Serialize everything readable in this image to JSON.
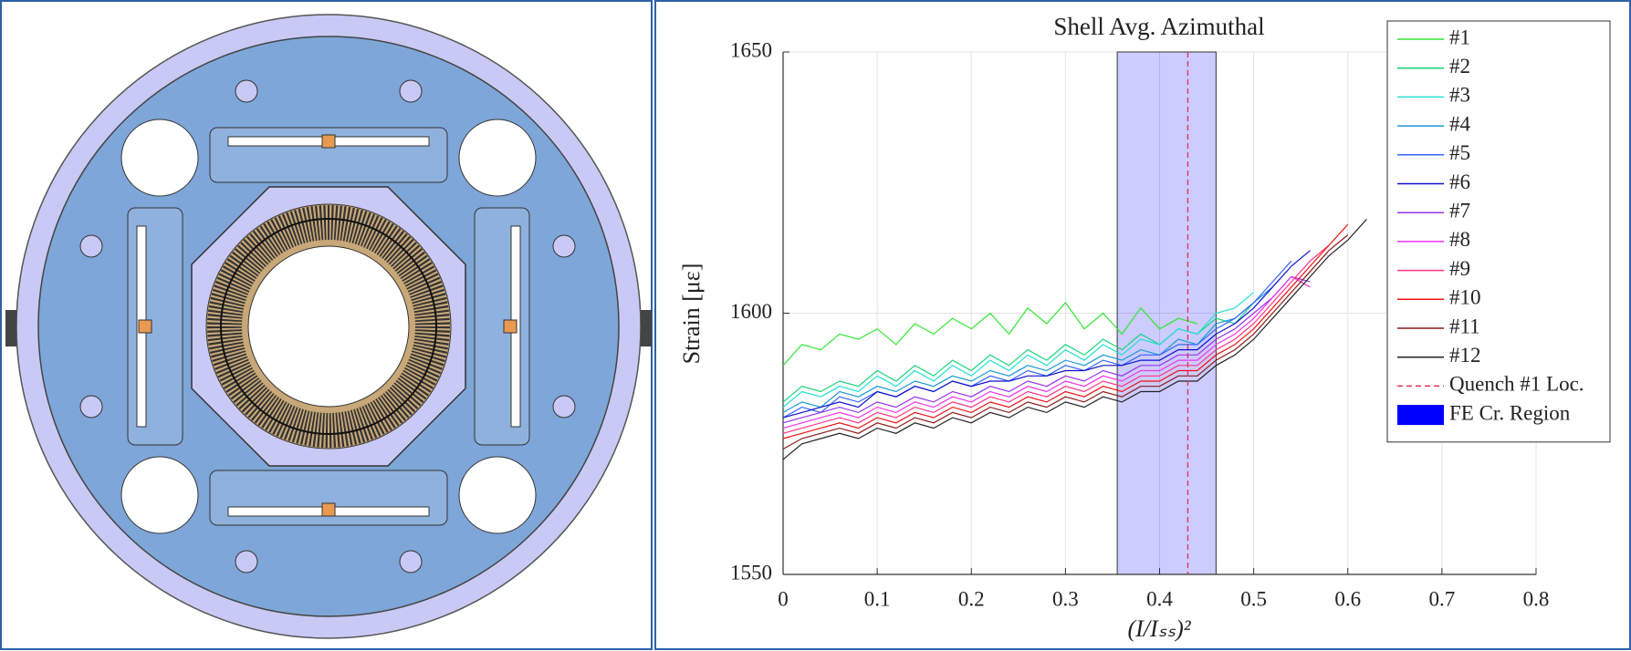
{
  "chart_data": {
    "type": "line",
    "title": "Shell Avg. Azimuthal",
    "x_label": "(I/Iₛₛ)²",
    "y_label": "Strain [με]",
    "x": [
      0,
      0.02,
      0.04,
      0.06,
      0.08,
      0.1,
      0.12,
      0.14,
      0.16,
      0.18,
      0.2,
      0.22,
      0.24,
      0.26,
      0.28,
      0.3,
      0.32,
      0.34,
      0.36,
      0.38,
      0.4,
      0.42,
      0.44,
      0.46,
      0.48,
      0.5,
      0.52,
      0.54,
      0.56,
      0.58,
      0.6,
      0.62
    ],
    "xlim": [
      0,
      0.8
    ],
    "xticks": [
      0,
      0.1,
      0.2,
      0.3,
      0.4,
      0.5,
      0.6,
      0.7,
      0.8
    ],
    "ylim": [
      1550,
      1650
    ],
    "yticks": [
      1550,
      1600,
      1650
    ],
    "grid": true,
    "legend": "top-right",
    "series": [
      {
        "name": "#1",
        "color": "#33e633",
        "values": [
          1590,
          1594,
          1593,
          1596,
          1595,
          1597,
          1594,
          1598,
          1596,
          1599,
          1597,
          1600,
          1596,
          1601,
          1598,
          1602,
          1597,
          1600,
          1596,
          1601,
          1597,
          1599,
          1598,
          null,
          null,
          null,
          null,
          null,
          null,
          null,
          null,
          null
        ]
      },
      {
        "name": "#2",
        "color": "#19d47a",
        "values": [
          1583,
          1586,
          1585,
          1587,
          1586,
          1589,
          1587,
          1590,
          1588,
          1591,
          1589,
          1592,
          1590,
          1593,
          1591,
          1594,
          1592,
          1595,
          1593,
          1596,
          1594,
          1597,
          1596,
          1599,
          1598,
          1602,
          null,
          null,
          null,
          null,
          null,
          null
        ]
      },
      {
        "name": "#3",
        "color": "#22e0d0",
        "values": [
          1582,
          1585,
          1584,
          1586,
          1585,
          1588,
          1586,
          1589,
          1587,
          1590,
          1588,
          1591,
          1589,
          1592,
          1590,
          1593,
          1591,
          1594,
          1592,
          1595,
          1594,
          1597,
          1596,
          1600,
          1601,
          1604,
          null,
          null,
          null,
          null,
          null,
          null
        ]
      },
      {
        "name": "#4",
        "color": "#1a9ad6",
        "values": [
          1581,
          1583,
          1582,
          1585,
          1584,
          1586,
          1585,
          1587,
          1586,
          1588,
          1587,
          1589,
          1588,
          1590,
          1589,
          1591,
          1590,
          1592,
          1591,
          1593,
          1592,
          1595,
          1594,
          1598,
          1599,
          1602,
          1605,
          null,
          null,
          null,
          null,
          null
        ]
      },
      {
        "name": "#5",
        "color": "#3366ff",
        "values": [
          1580,
          1582,
          1581,
          1584,
          1583,
          1585,
          1584,
          1586,
          1585,
          1587,
          1586,
          1588,
          1587,
          1589,
          1588,
          1590,
          1589,
          1591,
          1590,
          1592,
          1592,
          1594,
          1594,
          1597,
          1599,
          1602,
          1606,
          1610,
          null,
          null,
          null,
          null
        ]
      },
      {
        "name": "#6",
        "color": "#1010cc",
        "values": [
          1580,
          1581,
          1582,
          1583,
          1582,
          1585,
          1584,
          1586,
          1585,
          1587,
          1586,
          1587,
          1587,
          1588,
          1588,
          1589,
          1589,
          1590,
          1590,
          1591,
          1591,
          1593,
          1593,
          1596,
          1598,
          1601,
          1605,
          1609,
          1612,
          null,
          null,
          null
        ]
      },
      {
        "name": "#7",
        "color": "#9933ee",
        "values": [
          1579,
          1580,
          1581,
          1582,
          1581,
          1583,
          1582,
          1584,
          1583,
          1585,
          1584,
          1586,
          1585,
          1587,
          1586,
          1588,
          1587,
          1589,
          1588,
          1590,
          1590,
          1592,
          1592,
          1595,
          1597,
          1600,
          1603,
          1607,
          1606,
          null,
          null,
          null
        ]
      },
      {
        "name": "#8",
        "color": "#ee33ee",
        "values": [
          1578,
          1579,
          1580,
          1581,
          1580,
          1582,
          1581,
          1583,
          1582,
          1584,
          1583,
          1585,
          1584,
          1586,
          1585,
          1587,
          1586,
          1588,
          1587,
          1589,
          1589,
          1591,
          1591,
          1594,
          1596,
          1599,
          1603,
          1607,
          1605,
          null,
          null,
          null
        ]
      },
      {
        "name": "#9",
        "color": "#ff3388",
        "values": [
          1577,
          1578,
          1579,
          1580,
          1579,
          1581,
          1580,
          1582,
          1581,
          1583,
          1582,
          1584,
          1583,
          1585,
          1584,
          1586,
          1585,
          1587,
          1586,
          1588,
          1588,
          1590,
          1590,
          1593,
          1595,
          1598,
          1602,
          1606,
          1610,
          1613,
          null,
          null
        ]
      },
      {
        "name": "#10",
        "color": "#ee1111",
        "values": [
          1576,
          1577,
          1578,
          1579,
          1578,
          1580,
          1579,
          1581,
          1580,
          1582,
          1581,
          1583,
          1582,
          1584,
          1583,
          1585,
          1584,
          1586,
          1585,
          1587,
          1587,
          1589,
          1589,
          1592,
          1594,
          1597,
          1601,
          1605,
          1609,
          1613,
          1617,
          null
        ]
      },
      {
        "name": "#11",
        "color": "#8b1a1a",
        "values": [
          1574,
          1576,
          1577,
          1578,
          1577,
          1579,
          1578,
          1580,
          1579,
          1581,
          1580,
          1582,
          1581,
          1583,
          1582,
          1584,
          1583,
          1585,
          1584,
          1586,
          1586,
          1588,
          1588,
          1591,
          1593,
          1596,
          1600,
          1604,
          1608,
          1612,
          1615,
          null
        ]
      },
      {
        "name": "#12",
        "color": "#222222",
        "values": [
          1572,
          1575,
          1576,
          1577,
          1576,
          1578,
          1577,
          1579,
          1578,
          1580,
          1579,
          1581,
          1580,
          1582,
          1581,
          1583,
          1582,
          1584,
          1583,
          1585,
          1585,
          1587,
          1587,
          1590,
          1592,
          1595,
          1599,
          1603,
          1607,
          1611,
          1614,
          1618
        ]
      }
    ],
    "quench_line": {
      "name": "Quench #1 Loc.",
      "x": 0.43,
      "color": "#e0305a"
    },
    "region": {
      "name": "FE Cr. Region",
      "xlim": [
        0.355,
        0.46
      ],
      "color": "#0000ff"
    }
  }
}
